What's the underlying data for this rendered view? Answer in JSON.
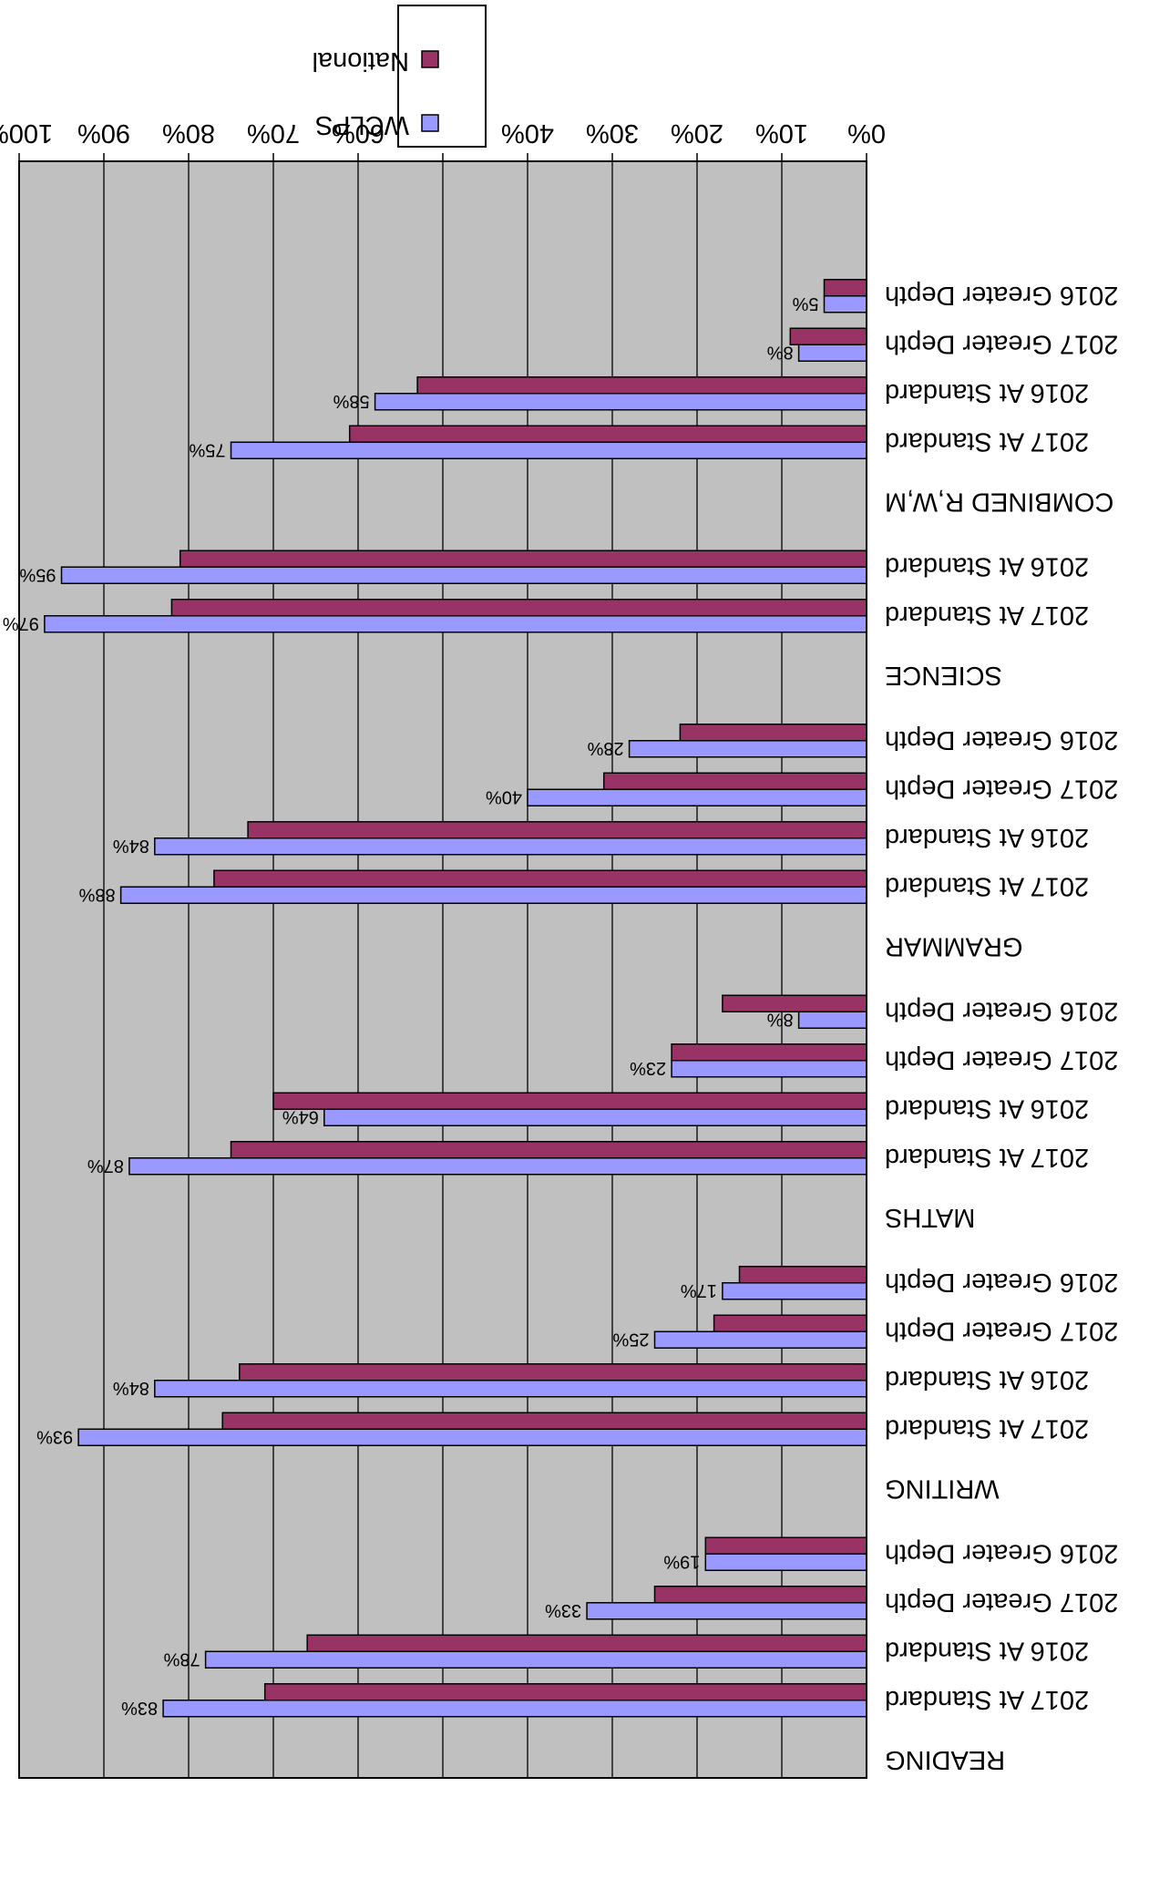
{
  "chart_data": {
    "type": "bar",
    "orientation": "horizontal",
    "rendered_rotated_180": true,
    "ylim": [
      0,
      100
    ],
    "y_ticks": [
      "0%",
      "10%",
      "20%",
      "30%",
      "40%",
      "50%",
      "60%",
      "70%",
      "80%",
      "90%",
      "100%"
    ],
    "groups": [
      {
        "name": "READING",
        "rows": [
          "2017 At Standard",
          "2016 At Standard",
          "2017 Greater Depth",
          "2016 Greater Depth"
        ]
      },
      {
        "name": "WRITING",
        "rows": [
          "2017 At Standard",
          "2016 At Standard",
          "2017 Greater Depth",
          "2016 Greater Depth"
        ]
      },
      {
        "name": "MATHS",
        "rows": [
          "2017 At Standard",
          "2016 At Standard",
          "2017 Greater Depth",
          "2016 Greater Depth"
        ]
      },
      {
        "name": "GRAMMAR",
        "rows": [
          "2017 At Standard",
          "2016 At Standard",
          "2017 Greater Depth",
          "2016 Greater Depth"
        ]
      },
      {
        "name": "SCIENCE",
        "rows": [
          "2017 At Standard",
          "2016 At Standard"
        ]
      },
      {
        "name": "COMBINED R,W,M",
        "rows": [
          "2017 At Standard",
          "2016 At Standard",
          "2017 Greater Depth",
          "2016 Greater Depth"
        ]
      }
    ],
    "series": [
      {
        "name": "WCLPS",
        "color": "#9999ff",
        "values": [
          83,
          78,
          33,
          19,
          93,
          84,
          25,
          17,
          87,
          64,
          23,
          8,
          88,
          84,
          40,
          28,
          97,
          95,
          75,
          58,
          8,
          5
        ],
        "labels": [
          "83%",
          "78%",
          "33%",
          "19%",
          "93%",
          "84%",
          "25%",
          "17%",
          "87%",
          "64%",
          "23%",
          "8%",
          "88%",
          "84%",
          "40%",
          "28%",
          "97%",
          "95%",
          "75%",
          "58%",
          "8%",
          "5%"
        ]
      },
      {
        "name": "National",
        "color": "#993366",
        "values": [
          71,
          66,
          25,
          19,
          76,
          74,
          18,
          15,
          75,
          70,
          23,
          17,
          77,
          73,
          31,
          22,
          82,
          81,
          61,
          53,
          9,
          5
        ]
      }
    ],
    "grid": true,
    "legend": "top-center"
  }
}
